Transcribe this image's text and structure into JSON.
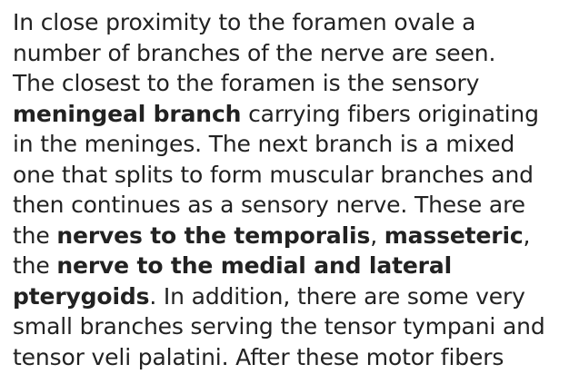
{
  "document": {
    "lines": [
      [
        {
          "t": "In close proximity to the foramen ovale a",
          "b": false
        }
      ],
      [
        {
          "t": "number of branches of the nerve are seen.",
          "b": false
        }
      ],
      [
        {
          "t": "The closest to the foramen is the sensory",
          "b": false
        }
      ],
      [
        {
          "t": "meningeal branch",
          "b": true
        },
        {
          "t": " carrying fibers originating",
          "b": false
        }
      ],
      [
        {
          "t": "in the meninges. The next branch is a mixed",
          "b": false
        }
      ],
      [
        {
          "t": "one that splits to form muscular branches and",
          "b": false
        }
      ],
      [
        {
          "t": "then continues as a sensory nerve. These are",
          "b": false
        }
      ],
      [
        {
          "t": "the ",
          "b": false
        },
        {
          "t": "nerves to the temporalis",
          "b": true
        },
        {
          "t": ", ",
          "b": false
        },
        {
          "t": "masseteric",
          "b": true
        },
        {
          "t": ",",
          "b": false
        }
      ],
      [
        {
          "t": "the ",
          "b": false
        },
        {
          "t": "nerve to the medial and lateral",
          "b": true
        }
      ],
      [
        {
          "t": "pterygoids",
          "b": true
        },
        {
          "t": ". In addition, there are some very",
          "b": false
        }
      ],
      [
        {
          "t": "small branches serving the tensor tympani and",
          "b": false
        }
      ],
      [
        {
          "t": "tensor veli palatini. After these motor fibers",
          "b": false
        }
      ]
    ]
  }
}
